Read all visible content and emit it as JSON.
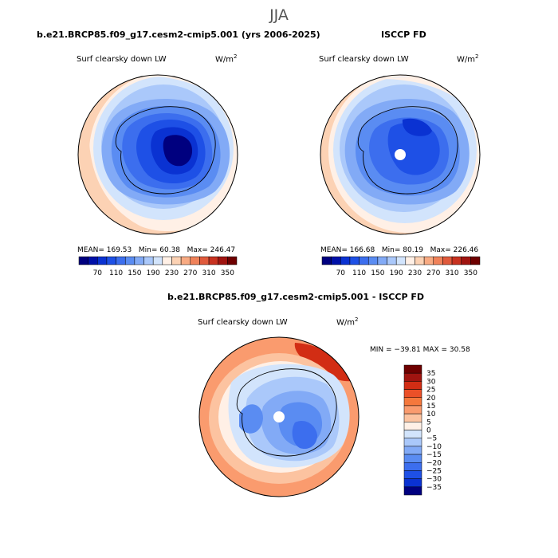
{
  "season_title": "JJA",
  "panels": {
    "model": {
      "title": "b.e21.BRCP85.f09_g17.cesm2-cmip5.001 (yrs 2006-2025)",
      "variable": "Surf clearsky down LW",
      "units_base": "W/m",
      "units_exp": "2",
      "mean_label": "MEAN=",
      "mean": "169.53",
      "min_label": "Min=",
      "min": "60.38",
      "max_label": "Max=",
      "max": "246.47",
      "colorbar_labels": [
        "70",
        "110",
        "150",
        "190",
        "230",
        "270",
        "310",
        "350"
      ]
    },
    "obs": {
      "title": "ISCCP FD",
      "variable": "Surf clearsky down LW",
      "units_base": "W/m",
      "units_exp": "2",
      "mean_label": "MEAN=",
      "mean": "166.68",
      "min_label": "Min=",
      "min": "80.19",
      "max_label": "Max=",
      "max": "226.46",
      "colorbar_labels": [
        "70",
        "110",
        "150",
        "190",
        "230",
        "270",
        "310",
        "350"
      ]
    },
    "diff": {
      "title": "b.e21.BRCP85.f09_g17.cesm2-cmip5.001 - ISCCP FD",
      "variable": "Surf clearsky down LW",
      "units_base": "W/m",
      "units_exp": "2",
      "minmax_text": "MIN = −39.81  MAX =  30.58",
      "colorbar_labels": [
        "35",
        "30",
        "25",
        "20",
        "15",
        "10",
        "5",
        "0",
        "−5",
        "−10",
        "−15",
        "−20",
        "−25",
        "−30",
        "−35"
      ]
    }
  },
  "colors": {
    "abs_scale": [
      "#00007f",
      "#0010a8",
      "#0a32d2",
      "#1e50e6",
      "#3c6eee",
      "#5a8cf2",
      "#82aaf6",
      "#aac8fa",
      "#d2e4fc",
      "#fff0e6",
      "#fcd2b4",
      "#f8aa82",
      "#f0825a",
      "#e05a3c",
      "#c83220",
      "#a01410",
      "#6e0000"
    ],
    "diff_scale": [
      "#6e0000",
      "#a01410",
      "#d22d14",
      "#eb5028",
      "#f5783c",
      "#fa9b6e",
      "#fcc3a0",
      "#fff0e6",
      "#d2e4fc",
      "#aac8fa",
      "#82aaf6",
      "#5a8cf2",
      "#3c6eee",
      "#1e50e6",
      "#0a32d2",
      "#00007f"
    ]
  }
}
